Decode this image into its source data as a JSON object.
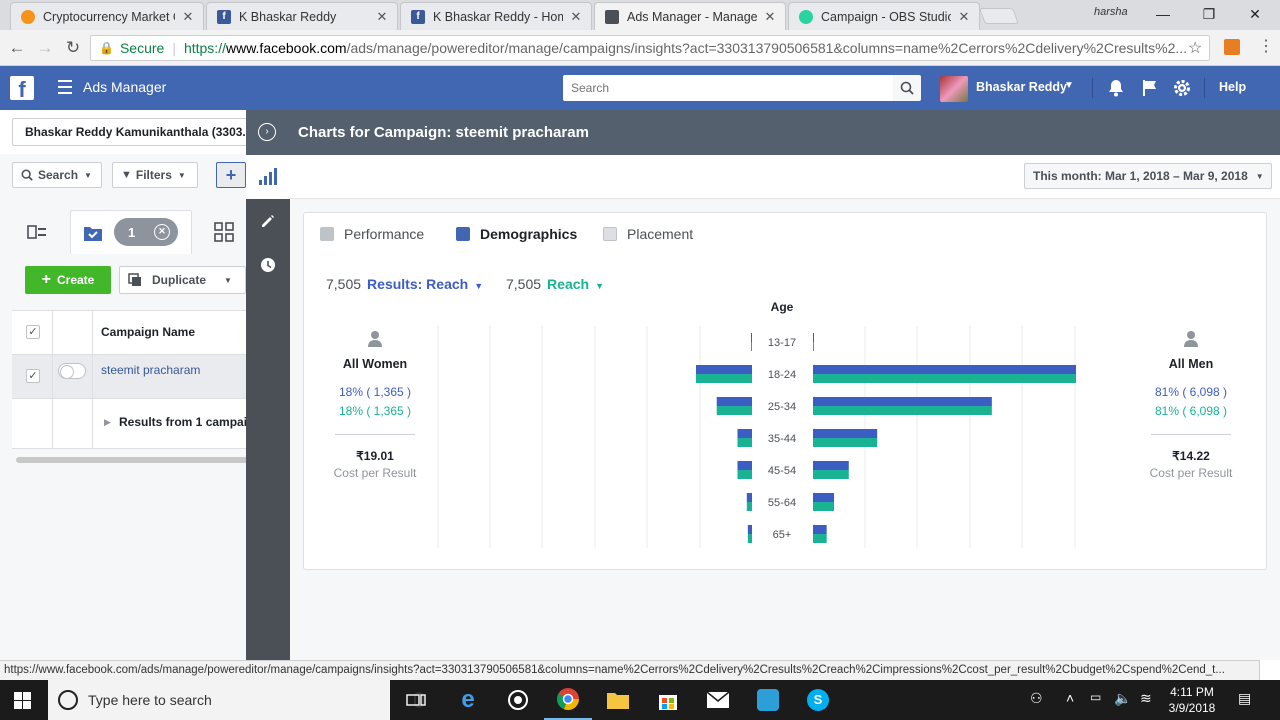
{
  "browser": {
    "tabs": [
      {
        "title": "Cryptocurrency Market C",
        "favicon": "coin-icon",
        "color": "#f7931a"
      },
      {
        "title": "K Bhaskar Reddy",
        "favicon": "facebook-icon",
        "color": "#3b5998"
      },
      {
        "title": "K Bhaskar Reddy - Home",
        "favicon": "facebook-icon",
        "color": "#3b5998"
      },
      {
        "title": "Ads Manager - Manage A",
        "favicon": "ads-manager-icon",
        "color": "#4b4f56"
      },
      {
        "title": "Campaign - OBS Studio",
        "favicon": "obs-icon",
        "color": "#2bd3a0"
      }
    ],
    "profile_name": "harsha",
    "secure_label": "Secure",
    "url_scheme": "https://",
    "url_host": "www.facebook.com",
    "url_path": "/ads/manage/powereditor/manage/campaigns/insights?act=330313790506581&columns=name%2Cerrors%2Cdelivery%2Cresults%2..."
  },
  "fb_header": {
    "logo": "f",
    "app_name": "Ads Manager",
    "search_placeholder": "Search",
    "user_name": "Bhaskar Reddy",
    "help_label": "Help"
  },
  "left_panel": {
    "account_name": "Bhaskar Reddy Kamunikanthala (3303...",
    "search_label": "Search",
    "filters_label": "Filters",
    "selected_count": "1",
    "create_label": "Create",
    "duplicate_label": "Duplicate",
    "column_header": "Campaign Name",
    "campaign_row": "steemit pracharam",
    "results_row": "Results from 1 campai"
  },
  "panel": {
    "title": "Charts for Campaign: steemit pracharam",
    "date_range": "This month: Mar 1, 2018 – Mar 9, 2018",
    "tabs": [
      {
        "label": "Performance",
        "icon": "bar-chart-icon"
      },
      {
        "label": "Demographics",
        "icon": "people-icon"
      },
      {
        "label": "Placement",
        "icon": "placement-icon"
      }
    ],
    "metric1_value": "7,505",
    "metric1_label": "Results: Reach",
    "metric2_value": "7,505",
    "metric2_label": "Reach",
    "women": {
      "title": "All Women",
      "pct1": "18% ( 1,365 )",
      "pct2": "18% ( 1,365 )",
      "cost": "₹19.01",
      "cost_label": "Cost per Result"
    },
    "men": {
      "title": "All Men",
      "pct1": "81% ( 6,098 )",
      "pct2": "81% ( 6,098 )",
      "cost": "₹14.22",
      "cost_label": "Cost per Result"
    },
    "colors": {
      "results": "#3b5dc4",
      "reach": "#19b394"
    }
  },
  "chart_data": {
    "type": "bar",
    "title": "Age",
    "orientation": "horizontal-butterfly",
    "categories": [
      "13-17",
      "18-24",
      "25-34",
      "35-44",
      "45-54",
      "55-64",
      "65+"
    ],
    "series": [
      {
        "name": "Results: Reach",
        "side": "women",
        "values": [
          1,
          540,
          340,
          140,
          140,
          50,
          40
        ]
      },
      {
        "name": "Reach",
        "side": "women",
        "values": [
          1,
          540,
          340,
          140,
          140,
          50,
          40
        ]
      },
      {
        "name": "Results: Reach",
        "side": "men",
        "values": [
          1,
          2500,
          1700,
          610,
          340,
          200,
          130
        ]
      },
      {
        "name": "Reach",
        "side": "men",
        "values": [
          1,
          2500,
          1700,
          610,
          340,
          200,
          130
        ]
      }
    ],
    "grid": true
  },
  "status_url": "https://www.facebook.com/ads/manage/powereditor/manage/campaigns/insights?act=330313790506581&columns=name%2Cerrors%2Cdelivery%2Cresults%2Creach%2Cimpressions%2Ccost_per_result%2Cbudget%2Cspend%2Cend_t...",
  "taskbar": {
    "search_placeholder": "Type here to search",
    "time": "4:11 PM",
    "date": "3/9/2018"
  }
}
